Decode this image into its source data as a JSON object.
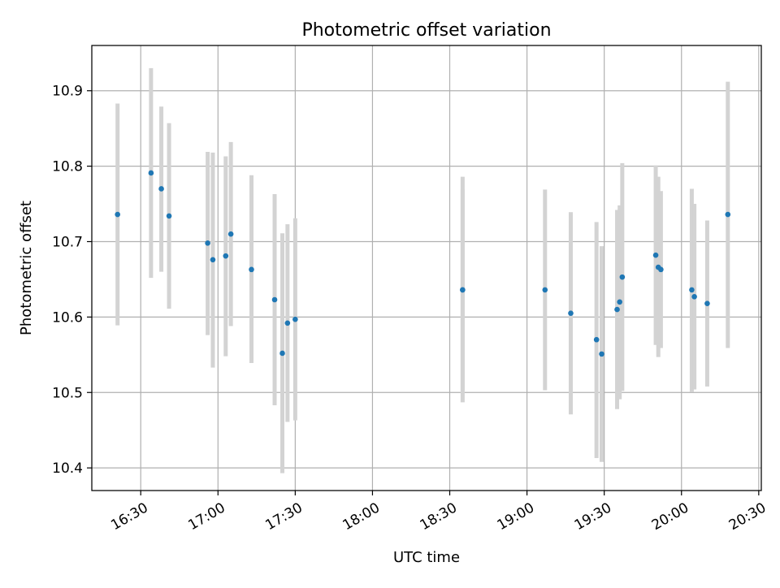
{
  "chart_data": {
    "type": "scatter",
    "title": "Photometric offset variation",
    "xlabel": "UTC time",
    "ylabel": "Photometric offset",
    "x_ticks": [
      "16:30",
      "17:00",
      "17:30",
      "18:00",
      "18:30",
      "19:00",
      "19:30",
      "20:00",
      "20:30"
    ],
    "y_ticks": [
      "10.4",
      "10.5",
      "10.6",
      "10.7",
      "10.8",
      "10.9"
    ],
    "xlim": [
      "16:11",
      "20:31"
    ],
    "ylim": [
      10.37,
      10.96
    ],
    "grid": true,
    "colors": {
      "marker": "#1f77b4",
      "errorbar": "#d3d3d3",
      "grid": "#b0b0b0"
    },
    "points": [
      {
        "time": "16:21",
        "offset": 10.736,
        "lower": 10.589,
        "upper": 10.883
      },
      {
        "time": "16:34",
        "offset": 10.791,
        "lower": 10.652,
        "upper": 10.93
      },
      {
        "time": "16:38",
        "offset": 10.77,
        "lower": 10.66,
        "upper": 10.879
      },
      {
        "time": "16:41",
        "offset": 10.734,
        "lower": 10.611,
        "upper": 10.857
      },
      {
        "time": "16:56",
        "offset": 10.698,
        "lower": 10.576,
        "upper": 10.819
      },
      {
        "time": "16:58",
        "offset": 10.676,
        "lower": 10.533,
        "upper": 10.818
      },
      {
        "time": "17:03",
        "offset": 10.681,
        "lower": 10.548,
        "upper": 10.813
      },
      {
        "time": "17:05",
        "offset": 10.71,
        "lower": 10.588,
        "upper": 10.832
      },
      {
        "time": "17:13",
        "offset": 10.663,
        "lower": 10.539,
        "upper": 10.788
      },
      {
        "time": "17:22",
        "offset": 10.623,
        "lower": 10.483,
        "upper": 10.763
      },
      {
        "time": "17:25",
        "offset": 10.552,
        "lower": 10.393,
        "upper": 10.711
      },
      {
        "time": "17:27",
        "offset": 10.592,
        "lower": 10.461,
        "upper": 10.723
      },
      {
        "time": "17:30",
        "offset": 10.597,
        "lower": 10.463,
        "upper": 10.731
      },
      {
        "time": "18:35",
        "offset": 10.636,
        "lower": 10.487,
        "upper": 10.786
      },
      {
        "time": "18:35",
        "offset": 10.636,
        "lower": 10.503,
        "upper": 10.769
      },
      {
        "time": "19:07",
        "offset": 10.636,
        "lower": 10.503,
        "upper": 10.769
      },
      {
        "time": "19:17",
        "offset": 10.605,
        "lower": 10.471,
        "upper": 10.739
      },
      {
        "time": "19:27",
        "offset": 10.57,
        "lower": 10.413,
        "upper": 10.726
      },
      {
        "time": "19:29",
        "offset": 10.551,
        "lower": 10.408,
        "upper": 10.694
      },
      {
        "time": "19:35",
        "offset": 10.61,
        "lower": 10.478,
        "upper": 10.742
      },
      {
        "time": "19:36",
        "offset": 10.62,
        "lower": 10.491,
        "upper": 10.748
      },
      {
        "time": "19:37",
        "offset": 10.653,
        "lower": 10.502,
        "upper": 10.804
      },
      {
        "time": "19:50",
        "offset": 10.682,
        "lower": 10.563,
        "upper": 10.801
      },
      {
        "time": "19:51",
        "offset": 10.666,
        "lower": 10.547,
        "upper": 10.786
      },
      {
        "time": "19:52",
        "offset": 10.663,
        "lower": 10.559,
        "upper": 10.767
      },
      {
        "time": "20:04",
        "offset": 10.636,
        "lower": 10.501,
        "upper": 10.77
      },
      {
        "time": "20:05",
        "offset": 10.627,
        "lower": 10.504,
        "upper": 10.75
      },
      {
        "time": "20:10",
        "offset": 10.618,
        "lower": 10.508,
        "upper": 10.728
      },
      {
        "time": "20:18",
        "offset": 10.736,
        "lower": 10.559,
        "upper": 10.912
      }
    ]
  }
}
